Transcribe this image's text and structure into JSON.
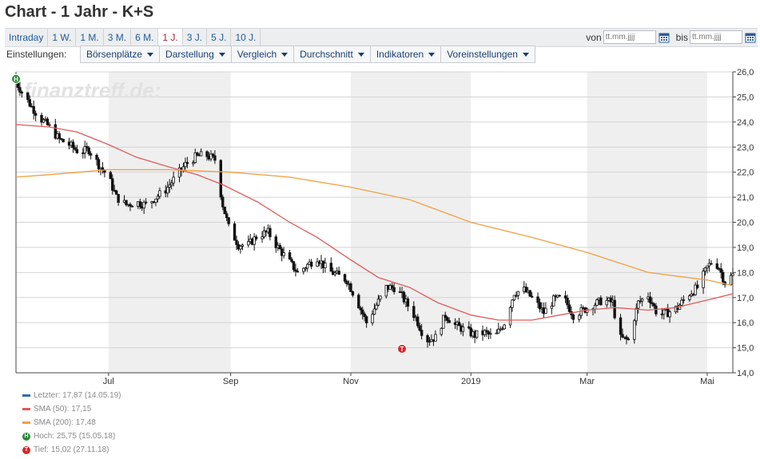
{
  "page": {
    "title": "Chart - 1 Jahr - K+S"
  },
  "periods": [
    {
      "label": "Intraday"
    },
    {
      "label": "1 W."
    },
    {
      "label": "1 M."
    },
    {
      "label": "3 M."
    },
    {
      "label": "6 M."
    },
    {
      "label": "1 J."
    },
    {
      "label": "3 J."
    },
    {
      "label": "5 J."
    },
    {
      "label": "10 J."
    }
  ],
  "active_period_index": 5,
  "date_range": {
    "from_label": "von",
    "from_placeholder": "tt.mm.jjjj",
    "to_label": "bis",
    "to_placeholder": "tt.mm.jjjj"
  },
  "settings": {
    "label": "Einstellungen:",
    "menus": [
      "Börsenplätze",
      "Darstellung",
      "Vergleich",
      "Durchschnitt",
      "Indikatoren",
      "Voreinstellungen"
    ]
  },
  "colors": {
    "candle": "#111111",
    "sma50": "#e05a5a",
    "sma200": "#f0a040",
    "letzter": "#2a6db0",
    "weekend_shade": "#efefef",
    "high_badge": "#2a8a3a",
    "low_badge": "#d8282a"
  },
  "chart_data": {
    "type": "candlestick",
    "watermark": "finanztreff.de:",
    "ylim": [
      14,
      26
    ],
    "y_ticks": [
      "14,0",
      "15,0",
      "16,0",
      "17,0",
      "18,0",
      "19,0",
      "20,0",
      "21,0",
      "22,0",
      "23,0",
      "24,0",
      "25,0",
      "26,0"
    ],
    "y_tick_values": [
      14,
      15,
      16,
      17,
      18,
      19,
      20,
      21,
      22,
      23,
      24,
      25,
      26
    ],
    "x_ticks": [
      "Jul",
      "Sep",
      "Nov",
      "2019",
      "Mar",
      "Mai"
    ],
    "x_tick_dates": [
      "2018-07-01",
      "2018-09-01",
      "2018-11-01",
      "2019-01-01",
      "2019-03-01",
      "2019-05-01"
    ],
    "x_range": [
      "2018-05-15",
      "2019-05-14"
    ],
    "shaded_periods": [
      [
        "2018-07-01",
        "2018-09-01"
      ],
      [
        "2018-11-01",
        "2019-01-01"
      ],
      [
        "2019-03-01",
        "2019-05-01"
      ]
    ],
    "close_series": [
      [
        "2018-05-15",
        25.6
      ],
      [
        "2018-05-18",
        25.2
      ],
      [
        "2018-05-23",
        24.6
      ],
      [
        "2018-05-28",
        24.1
      ],
      [
        "2018-06-01",
        23.8
      ],
      [
        "2018-06-06",
        23.3
      ],
      [
        "2018-06-11",
        23.1
      ],
      [
        "2018-06-16",
        22.8
      ],
      [
        "2018-06-21",
        22.9
      ],
      [
        "2018-06-26",
        22.3
      ],
      [
        "2018-07-01",
        21.8
      ],
      [
        "2018-07-05",
        21.0
      ],
      [
        "2018-07-10",
        20.7
      ],
      [
        "2018-07-15",
        20.8
      ],
      [
        "2018-07-20",
        20.7
      ],
      [
        "2018-07-25",
        21.0
      ],
      [
        "2018-07-30",
        21.3
      ],
      [
        "2018-08-04",
        21.8
      ],
      [
        "2018-08-09",
        22.3
      ],
      [
        "2018-08-14",
        22.6
      ],
      [
        "2018-08-19",
        22.7
      ],
      [
        "2018-08-24",
        22.5
      ],
      [
        "2018-08-28",
        20.7
      ],
      [
        "2018-08-31",
        19.8
      ],
      [
        "2018-09-05",
        19.1
      ],
      [
        "2018-09-10",
        19.1
      ],
      [
        "2018-09-15",
        19.5
      ],
      [
        "2018-09-20",
        19.6
      ],
      [
        "2018-09-25",
        19.0
      ],
      [
        "2018-09-30",
        18.5
      ],
      [
        "2018-10-05",
        18.0
      ],
      [
        "2018-10-10",
        18.3
      ],
      [
        "2018-10-15",
        18.6
      ],
      [
        "2018-10-20",
        18.1
      ],
      [
        "2018-10-25",
        17.9
      ],
      [
        "2018-10-30",
        17.7
      ],
      [
        "2018-11-04",
        16.9
      ],
      [
        "2018-11-09",
        16.0
      ],
      [
        "2018-11-14",
        16.7
      ],
      [
        "2018-11-19",
        17.4
      ],
      [
        "2018-11-24",
        17.4
      ],
      [
        "2018-11-29",
        16.8
      ],
      [
        "2018-12-04",
        16.2
      ],
      [
        "2018-12-09",
        15.3
      ],
      [
        "2018-12-14",
        15.4
      ],
      [
        "2018-12-19",
        16.3
      ],
      [
        "2018-12-24",
        15.9
      ],
      [
        "2018-12-29",
        15.7
      ],
      [
        "2019-01-03",
        15.5
      ],
      [
        "2019-01-08",
        15.6
      ],
      [
        "2019-01-13",
        15.4
      ],
      [
        "2019-01-18",
        16.0
      ],
      [
        "2019-01-23",
        17.2
      ],
      [
        "2019-01-28",
        17.3
      ],
      [
        "2019-02-02",
        16.9
      ],
      [
        "2019-02-07",
        16.4
      ],
      [
        "2019-02-12",
        16.9
      ],
      [
        "2019-02-17",
        17.0
      ],
      [
        "2019-02-22",
        16.3
      ],
      [
        "2019-02-27",
        16.5
      ],
      [
        "2019-03-04",
        16.7
      ],
      [
        "2019-03-09",
        16.9
      ],
      [
        "2019-03-14",
        16.8
      ],
      [
        "2019-03-17",
        15.4
      ],
      [
        "2019-03-22",
        15.3
      ],
      [
        "2019-03-27",
        16.8
      ],
      [
        "2019-04-01",
        17.1
      ],
      [
        "2019-04-06",
        16.3
      ],
      [
        "2019-04-11",
        16.4
      ],
      [
        "2019-04-16",
        16.6
      ],
      [
        "2019-04-21",
        17.1
      ],
      [
        "2019-04-26",
        17.4
      ],
      [
        "2019-05-01",
        18.2
      ],
      [
        "2019-05-04",
        18.5
      ],
      [
        "2019-05-07",
        18.2
      ],
      [
        "2019-05-10",
        17.6
      ],
      [
        "2019-05-14",
        17.9
      ]
    ],
    "series": [
      {
        "name": "SMA (50)",
        "values": [
          [
            "2018-05-15",
            23.9
          ],
          [
            "2018-06-01",
            23.8
          ],
          [
            "2018-06-15",
            23.6
          ],
          [
            "2018-07-01",
            23.1
          ],
          [
            "2018-07-15",
            22.6
          ],
          [
            "2018-08-01",
            22.2
          ],
          [
            "2018-08-15",
            21.9
          ],
          [
            "2018-08-28",
            21.5
          ],
          [
            "2018-09-15",
            20.8
          ],
          [
            "2018-10-01",
            20.0
          ],
          [
            "2018-10-15",
            19.4
          ],
          [
            "2018-11-01",
            18.5
          ],
          [
            "2018-11-15",
            17.8
          ],
          [
            "2018-12-01",
            17.4
          ],
          [
            "2018-12-15",
            16.8
          ],
          [
            "2019-01-01",
            16.3
          ],
          [
            "2019-01-15",
            16.1
          ],
          [
            "2019-02-01",
            16.1
          ],
          [
            "2019-02-15",
            16.3
          ],
          [
            "2019-03-01",
            16.5
          ],
          [
            "2019-03-15",
            16.6
          ],
          [
            "2019-04-01",
            16.5
          ],
          [
            "2019-04-15",
            16.6
          ],
          [
            "2019-05-01",
            16.9
          ],
          [
            "2019-05-14",
            17.15
          ]
        ]
      },
      {
        "name": "SMA (200)",
        "values": [
          [
            "2018-05-15",
            21.8
          ],
          [
            "2018-06-01",
            21.9
          ],
          [
            "2018-07-01",
            22.1
          ],
          [
            "2018-08-01",
            22.1
          ],
          [
            "2018-09-01",
            22.0
          ],
          [
            "2018-10-01",
            21.8
          ],
          [
            "2018-11-01",
            21.4
          ],
          [
            "2018-12-01",
            20.9
          ],
          [
            "2019-01-01",
            20.0
          ],
          [
            "2019-02-01",
            19.4
          ],
          [
            "2019-03-01",
            18.8
          ],
          [
            "2019-04-01",
            18.0
          ],
          [
            "2019-05-01",
            17.7
          ],
          [
            "2019-05-14",
            17.48
          ]
        ]
      }
    ],
    "markers": [
      {
        "label": "H",
        "date": "2018-05-15",
        "value": 25.75
      },
      {
        "label": "T",
        "date": "2018-11-27",
        "value": 15.02
      }
    ],
    "legend": [
      {
        "text": "Letzter: 17,87 (14.05.19)",
        "kind": "line",
        "color": "#2a6db0"
      },
      {
        "text": "SMA (50): 17,15",
        "kind": "line",
        "color": "#e05a5a"
      },
      {
        "text": "SMA (200): 17,48",
        "kind": "line",
        "color": "#f0a040"
      },
      {
        "text": "Hoch: 25,75 (15.05.18)",
        "kind": "badge",
        "badge": "H",
        "color": "#2a8a3a"
      },
      {
        "text": "Tief: 15,02 (27.11.18)",
        "kind": "badge",
        "badge": "T",
        "color": "#d8282a"
      }
    ]
  }
}
